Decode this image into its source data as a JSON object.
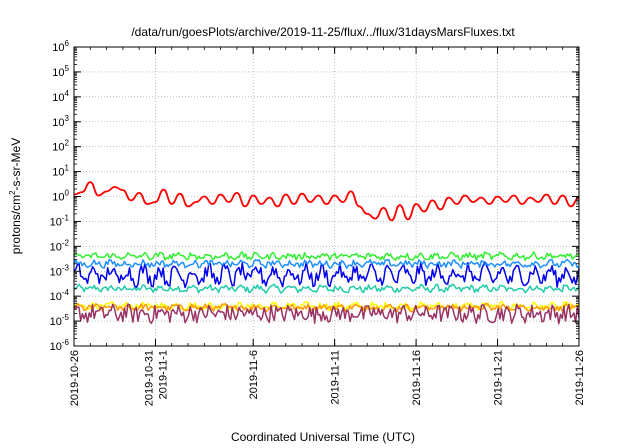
{
  "chart_data": {
    "type": "line",
    "title": "/data/run/goesPlots/archive/2019-11-25/flux/../flux/31daysMarsFluxes.txt",
    "xlabel": "Coordinated Universal Time (UTC)",
    "ylabel": "protons/cm²-s-sr-MeV",
    "y_scale": "log",
    "ylim": [
      1e-06,
      1000000.0
    ],
    "xlim": [
      "2019-10-26",
      "2019-11-26"
    ],
    "y_ticks": [
      {
        "value": 1e-06,
        "base": "10",
        "exp": "-6"
      },
      {
        "value": 1e-05,
        "base": "10",
        "exp": "-5"
      },
      {
        "value": 0.0001,
        "base": "10",
        "exp": "-4"
      },
      {
        "value": 0.001,
        "base": "10",
        "exp": "-3"
      },
      {
        "value": 0.01,
        "base": "10",
        "exp": "-2"
      },
      {
        "value": 0.1,
        "base": "10",
        "exp": "-1"
      },
      {
        "value": 1.0,
        "base": "10",
        "exp": "0"
      },
      {
        "value": 10.0,
        "base": "10",
        "exp": "1"
      },
      {
        "value": 100.0,
        "base": "10",
        "exp": "2"
      },
      {
        "value": 1000.0,
        "base": "10",
        "exp": "3"
      },
      {
        "value": 10000.0,
        "base": "10",
        "exp": "4"
      },
      {
        "value": 100000.0,
        "base": "10",
        "exp": "5"
      },
      {
        "value": 1000000.0,
        "base": "10",
        "exp": "6"
      }
    ],
    "x_ticks": [
      {
        "date": "2019-10-26",
        "label": [
          "2019-10-26"
        ]
      },
      {
        "date": "2019-10-31",
        "label": [
          "2019-10-31",
          "2019-11-1"
        ]
      },
      {
        "date": "2019-11-06",
        "label": [
          "2019-11-6"
        ]
      },
      {
        "date": "2019-11-11",
        "label": [
          "2019-11-11"
        ]
      },
      {
        "date": "2019-11-16",
        "label": [
          "2019-11-16"
        ]
      },
      {
        "date": "2019-11-21",
        "label": [
          "2019-11-21"
        ]
      },
      {
        "date": "2019-11-26",
        "label": [
          "2019-11-26"
        ]
      }
    ],
    "grid": true,
    "series": [
      {
        "color": "#ff0000",
        "style": "smooth",
        "x": [
          "2019-10-26",
          "2019-10-26T12:00",
          "2019-10-27",
          "2019-10-27T12:00",
          "2019-10-28",
          "2019-10-28T12:00",
          "2019-10-29",
          "2019-10-29T12:00",
          "2019-10-30",
          "2019-10-30T12:00",
          "2019-10-31",
          "2019-10-31T12:00",
          "2019-11-01",
          "2019-11-01T12:00",
          "2019-11-02",
          "2019-11-02T12:00",
          "2019-11-03",
          "2019-11-03T12:00",
          "2019-11-04",
          "2019-11-04T12:00",
          "2019-11-05",
          "2019-11-05T12:00",
          "2019-11-06",
          "2019-11-06T12:00",
          "2019-11-07",
          "2019-11-07T12:00",
          "2019-11-08",
          "2019-11-08T12:00",
          "2019-11-09",
          "2019-11-09T12:00",
          "2019-11-10",
          "2019-11-10T12:00",
          "2019-11-11",
          "2019-11-11T12:00",
          "2019-11-12",
          "2019-11-12T12:00",
          "2019-11-13",
          "2019-11-13T12:00",
          "2019-11-14",
          "2019-11-14T12:00",
          "2019-11-15",
          "2019-11-15T12:00",
          "2019-11-16",
          "2019-11-16T12:00",
          "2019-11-17",
          "2019-11-17T12:00",
          "2019-11-18",
          "2019-11-18T12:00",
          "2019-11-19",
          "2019-11-19T12:00",
          "2019-11-20",
          "2019-11-20T12:00",
          "2019-11-21",
          "2019-11-21T12:00",
          "2019-11-22",
          "2019-11-22T12:00",
          "2019-11-23",
          "2019-11-23T12:00",
          "2019-11-24",
          "2019-11-24T12:00",
          "2019-11-25",
          "2019-11-25T12:00",
          "2019-11-26"
        ],
        "y": [
          1.2,
          1.5,
          3.8,
          1.1,
          1.6,
          2.4,
          1.8,
          0.7,
          1.4,
          0.5,
          0.6,
          1.9,
          0.5,
          1.3,
          0.4,
          0.6,
          1.0,
          0.5,
          1.2,
          0.6,
          1.4,
          0.4,
          1.1,
          0.5,
          0.9,
          0.4,
          1.2,
          0.5,
          1.3,
          0.6,
          1.1,
          0.5,
          1.1,
          0.6,
          1.6,
          0.4,
          0.2,
          0.13,
          0.35,
          0.11,
          0.45,
          0.12,
          0.5,
          0.25,
          0.7,
          0.3,
          0.9,
          0.5,
          1.1,
          0.6,
          0.9,
          0.5,
          1.0,
          0.6,
          1.1,
          0.5,
          0.9,
          0.6,
          1.2,
          0.5,
          1.1,
          0.4,
          0.9
        ]
      },
      {
        "color": "#33ee33",
        "style": "noisy",
        "x": [
          "2019-10-26",
          "2019-11-26"
        ],
        "y": [
          0.004,
          0.004
        ]
      },
      {
        "color": "#1e90ff",
        "style": "noisy",
        "x": [
          "2019-10-26",
          "2019-11-26"
        ],
        "y": [
          0.002,
          0.002
        ]
      },
      {
        "color": "#0000ee",
        "style": "noisy",
        "x": [
          "2019-10-26",
          "2019-11-26"
        ],
        "y": [
          0.0007,
          0.0007
        ]
      },
      {
        "color": "#22ccaa",
        "style": "noisy",
        "x": [
          "2019-10-26",
          "2019-11-26"
        ],
        "y": [
          0.0002,
          0.0002
        ]
      },
      {
        "color": "#ffff00",
        "style": "noisy",
        "x": [
          "2019-10-26",
          "2019-11-26"
        ],
        "y": [
          4e-05,
          4e-05
        ]
      },
      {
        "color": "#ff9900",
        "style": "noisy",
        "x": [
          "2019-10-26",
          "2019-11-26"
        ],
        "y": [
          3.5e-05,
          3.5e-05
        ]
      },
      {
        "color": "#993366",
        "style": "noisy",
        "x": [
          "2019-10-26",
          "2019-11-26"
        ],
        "y": [
          2e-05,
          2e-05
        ]
      }
    ]
  }
}
